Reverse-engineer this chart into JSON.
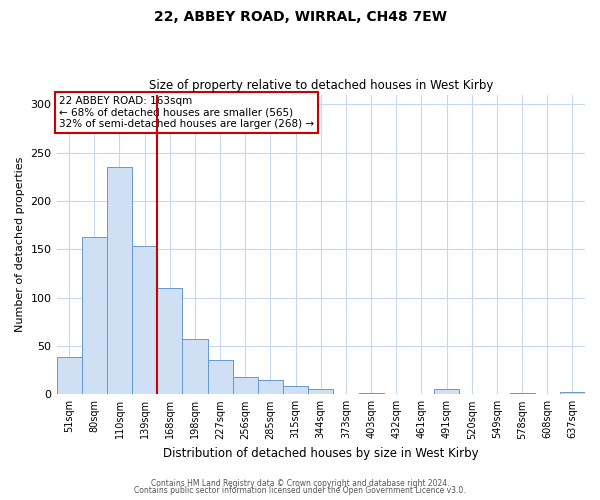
{
  "title": "22, ABBEY ROAD, WIRRAL, CH48 7EW",
  "subtitle": "Size of property relative to detached houses in West Kirby",
  "xlabel": "Distribution of detached houses by size in West Kirby",
  "ylabel": "Number of detached properties",
  "bar_labels": [
    "51sqm",
    "80sqm",
    "110sqm",
    "139sqm",
    "168sqm",
    "198sqm",
    "227sqm",
    "256sqm",
    "285sqm",
    "315sqm",
    "344sqm",
    "373sqm",
    "403sqm",
    "432sqm",
    "461sqm",
    "491sqm",
    "520sqm",
    "549sqm",
    "578sqm",
    "608sqm",
    "637sqm"
  ],
  "bar_values": [
    39,
    163,
    235,
    153,
    110,
    57,
    35,
    18,
    15,
    9,
    6,
    0,
    1,
    0,
    0,
    5,
    0,
    0,
    1,
    0,
    2
  ],
  "bar_color": "#cfe0f5",
  "bar_edge_color": "#6699cc",
  "vline_x_idx": 3,
  "vline_color": "#cc0000",
  "annotation_title": "22 ABBEY ROAD: 163sqm",
  "annotation_line1": "← 68% of detached houses are smaller (565)",
  "annotation_line2": "32% of semi-detached houses are larger (268) →",
  "annotation_box_color": "#cc0000",
  "ylim": [
    0,
    310
  ],
  "yticks": [
    0,
    50,
    100,
    150,
    200,
    250,
    300
  ],
  "footer1": "Contains HM Land Registry data © Crown copyright and database right 2024.",
  "footer2": "Contains public sector information licensed under the Open Government Licence v3.0.",
  "bg_color": "#ffffff",
  "grid_color": "#c5d8ec"
}
